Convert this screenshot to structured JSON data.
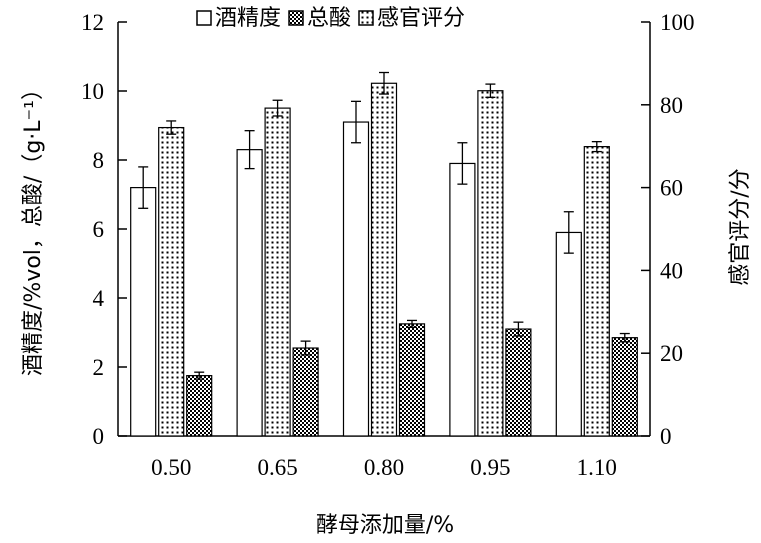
{
  "chart_data": {
    "type": "bar",
    "categories": [
      "0.50",
      "0.65",
      "0.80",
      "0.95",
      "1.10"
    ],
    "xlabel": "酵母添加量/%",
    "ylabel_left": "酒精度/%vol，总酸/（g·L⁻¹）",
    "ylabel_right": "感官评分/分",
    "ylim_left": [
      0,
      12
    ],
    "ylim_right": [
      0,
      100
    ],
    "yticks_left": [
      "0",
      "2",
      "4",
      "6",
      "8",
      "10",
      "12"
    ],
    "yticks_right": [
      "0",
      "20",
      "40",
      "60",
      "80",
      "100"
    ],
    "legend_position": "top",
    "series": [
      {
        "name": "酒精度",
        "axis": "left",
        "pattern": "white",
        "values": [
          7.2,
          8.3,
          9.1,
          7.9,
          5.9
        ],
        "errors": [
          0.6,
          0.55,
          0.6,
          0.6,
          0.6
        ]
      },
      {
        "name": "感官评分",
        "axis": "right",
        "pattern": "dots",
        "values": [
          74.5,
          79.2,
          85.2,
          83.4,
          69.9
        ],
        "errors": [
          1.6,
          1.9,
          2.6,
          1.6,
          1.2
        ]
      },
      {
        "name": "总酸",
        "axis": "left",
        "pattern": "checker",
        "values": [
          1.75,
          2.55,
          3.25,
          3.1,
          2.85
        ],
        "errors": [
          0.1,
          0.2,
          0.1,
          0.2,
          0.12
        ]
      }
    ],
    "legend_order": [
      "酒精度",
      "总酸",
      "感官评分"
    ]
  }
}
